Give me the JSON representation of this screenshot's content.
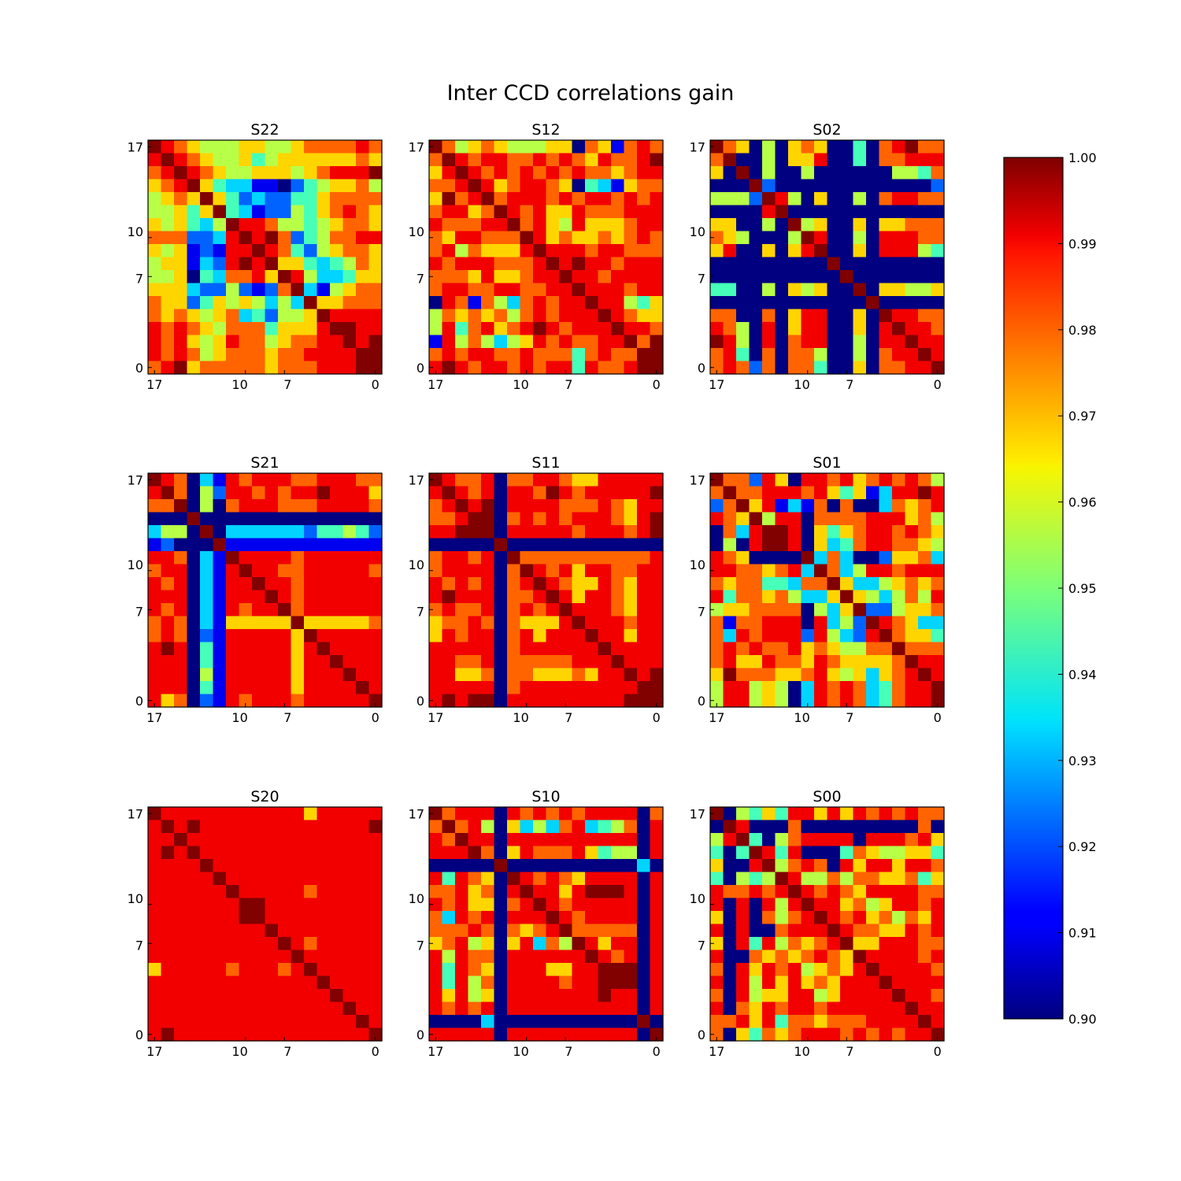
{
  "chart_data": {
    "type": "heatmap",
    "title": "Inter CCD correlations gain",
    "colormap": "jet",
    "color_range": [
      0.9,
      1.0
    ],
    "matrix_size": 18,
    "x_ticks": [
      "17",
      "10",
      "7",
      "0"
    ],
    "y_ticks": [
      "17",
      "10",
      "7",
      "0"
    ],
    "colorbar_ticks": [
      "1.00",
      "0.99",
      "0.98",
      "0.97",
      "0.96",
      "0.95",
      "0.94",
      "0.93",
      "0.92",
      "0.91",
      "0.90"
    ],
    "panels": [
      {
        "name": "S22",
        "rows": [
          "9,8,7,6,5,5,5,6,6,5,5,6,7,7,7,7,8,7",
          "8,9,8,7,6,5,5,6,4,5,6,6,6,6,6,6,7,6",
          "7,8,9,8,7,6,5,5,6,6,6,5,6,7,8,8,8,9",
          "6,7,8,9,6,4,3,3,1,1,0,2,4,5,6,6,7,5",
          "5,6,7,6,9,6,4,2,3,2,2,4,4,6,7,7,7,7",
          "5,5,6,4,6,9,4,3,1,2,2,5,4,6,7,8,7,6",
          "6,5,6,4,3,5,9,8,8,7,5,5,4,5,6,7,7,6",
          "7,7,7,2,2,3,8,9,8,9,7,2,4,5,7,7,8,8",
          "6,5,6,1,2,1,8,8,9,8,7,4,2,5,6,7,7,6",
          "5,6,6,1,3,2,8,9,8,9,6,6,4,3,4,5,7,6",
          "5,5,6,0,4,3,7,7,8,6,9,8,5,3,3,4,6,6",
          "6,6,6,3,2,2,5,2,1,2,7,9,3,1,5,6,7,7",
          "7,6,6,2,4,6,5,6,5,3,5,3,9,6,6,7,7,7",
          "7,6,7,6,5,6,7,3,4,2,5,5,6,9,8,8,8,8",
          "8,7,8,7,6,5,7,7,7,4,6,6,6,8,9,9,8,8",
          "8,7,8,6,5,6,8,7,7,5,6,7,7,8,8,9,8,9",
          "8,7,8,7,5,6,7,7,7,6,7,7,8,8,8,8,9,9",
          "7,8,9,6,7,7,7,7,7,6,7,7,7,8,8,8,9,9"
        ]
      },
      {
        "name": "S12",
        "rows": [
          "9,7,5,6,7,6,5,5,5,6,6,0,7,6,1,7,8,7",
          "7,9,8,7,8,8,7,7,8,7,8,7,6,8,7,7,8,9",
          "6,8,9,8,7,8,7,8,7,8,7,8,7,7,6,7,8,8",
          "7,7,8,9,8,6,7,8,8,7,6,0,4,3,1,6,7,7",
          "6,9,7,8,9,7,8,8,8,7,8,7,8,8,7,8,7,8",
          "7,8,8,6,7,9,8,7,8,6,6,8,7,7,7,8,8,8",
          "8,7,7,7,8,8,9,7,8,6,5,8,6,6,6,7,8,8",
          "7,6,8,8,7,7,7,9,8,6,7,6,6,7,6,7,8,7",
          "7,8,5,7,6,6,6,8,9,8,8,8,7,8,8,7,7,7",
          "8,7,8,8,8,7,7,7,8,9,8,9,8,8,7,8,8,8",
          "7,7,7,6,8,6,6,7,8,8,9,8,8,7,8,8,8,8",
          "7,8,8,7,7,8,8,7,7,8,8,9,8,8,8,7,8,8",
          "0,8,7,1,7,5,3,7,8,7,8,8,9,8,8,5,4,6",
          "5,7,6,7,6,7,5,7,8,7,8,8,8,9,8,7,6,6",
          "5,8,4,7,8,6,7,8,9,8,7,8,8,8,9,8,8,7",
          "1,8,5,7,5,3,5,6,8,7,8,7,7,8,8,9,7,9",
          "7,8,7,8,8,7,7,8,7,7,7,4,7,8,7,7,9,9",
          "8,9,8,7,8,8,7,8,7,8,8,4,8,7,7,8,9,9"
        ]
      },
      {
        "name": "S02",
        "rows": [
          "9,7,6,0,5,0,6,7,6,0,0,4,0,7,8,9,7,7",
          "7,9,0,0,5,0,6,6,8,0,0,4,0,7,7,8,8,8",
          "6,0,9,0,5,0,0,5,0,0,0,0,0,0,5,5,4,7",
          "0,0,0,9,2,0,0,0,0,0,0,0,0,0,0,0,0,2",
          "5,5,5,2,9,8,5,0,6,0,0,5,0,7,8,8,7,7",
          "0,0,0,0,8,9,0,0,0,0,0,0,0,0,0,0,0,0",
          "6,6,0,0,5,0,9,5,6,0,0,6,0,6,6,7,7,7",
          "7,6,5,0,0,0,5,9,8,0,0,5,0,8,8,8,7,7",
          "6,8,0,0,6,0,6,8,9,0,0,6,0,8,8,8,5,4",
          "0,0,0,0,0,0,0,0,0,9,0,0,0,0,0,0,0,0",
          "0,0,0,0,0,0,0,0,0,0,9,0,0,0,0,0,0,0",
          "4,4,0,0,5,0,6,5,6,0,0,9,0,6,6,5,5,6",
          "0,0,0,0,0,0,0,0,0,0,0,0,9,0,0,0,0,0",
          "7,7,0,0,7,0,6,8,8,0,0,6,0,9,8,8,7,7",
          "8,7,5,0,8,0,6,8,8,0,0,6,0,8,9,8,8,7",
          "9,8,5,0,8,0,7,8,8,0,0,5,0,8,8,9,8,8",
          "7,8,4,0,7,0,7,7,5,0,0,5,0,7,8,8,9,8",
          "7,8,7,2,7,0,7,7,4,0,0,6,0,7,7,8,8,9"
        ]
      },
      {
        "name": "S21",
        "rows": [
          "9,8,7,0,3,1,8,7,8,8,8,7,7,8,8,8,7,7",
          "8,9,7,0,5,2,8,8,7,8,7,8,8,9,8,8,8,6",
          "7,7,9,0,5,0,7,8,8,8,7,7,7,8,8,8,8,7",
          "0,0,0,9,0,0,0,0,0,0,0,0,0,0,0,0,0,0",
          "3,5,5,0,9,0,3,3,3,3,3,3,2,4,4,5,4,2",
          "1,2,0,0,0,9,1,1,1,1,1,1,1,1,1,1,1,1",
          "8,8,7,0,3,1,9,8,8,8,8,7,8,8,8,8,8,8",
          "7,8,8,0,3,1,8,9,8,8,7,7,8,8,8,8,8,7",
          "8,7,8,0,3,1,8,8,9,8,8,7,8,8,8,8,8,8",
          "8,8,8,0,3,1,8,8,8,9,8,7,8,8,8,8,8,8",
          "8,7,8,0,3,1,8,7,8,8,9,7,8,8,8,8,8,8",
          "7,8,7,0,3,1,6,6,6,6,6,9,6,6,6,6,6,7",
          "7,8,7,0,2,1,8,8,8,8,8,6,9,8,8,8,8,8",
          "8,9,8,0,4,1,8,8,8,8,8,6,8,9,8,8,8,8",
          "8,8,8,0,4,1,8,8,8,8,8,6,8,8,9,8,8,8",
          "8,8,8,0,5,1,8,8,8,8,8,6,8,8,8,9,8,8",
          "8,8,8,0,4,1,8,8,8,8,8,6,8,8,8,8,9,8",
          "8,6,7,0,2,1,8,7,8,8,8,7,8,8,8,8,8,9"
        ]
      },
      {
        "name": "S11",
        "rows": [
          "9,8,7,7,8,0,7,7,8,8,7,6,6,8,8,8,8,8",
          "8,9,8,7,8,0,8,8,7,9,8,7,8,8,8,8,8,9",
          "7,8,9,8,9,0,8,8,8,8,7,7,7,8,7,6,8,8",
          "7,7,8,9,9,0,7,8,7,8,7,8,8,8,7,6,8,9",
          "8,8,9,9,9,0,8,8,8,8,8,7,8,8,8,7,8,9",
          "0,0,0,0,0,9,0,0,0,0,0,0,0,0,0,0,0,0",
          "7,8,8,7,8,0,9,7,7,7,7,7,7,7,7,7,7,8",
          "7,8,8,8,8,0,7,9,8,7,8,6,8,8,7,7,8,8",
          "8,7,8,7,8,0,7,8,9,8,7,6,6,8,7,6,8,8",
          "8,9,8,8,8,0,7,7,8,9,8,6,8,8,7,6,8,8",
          "7,8,7,7,8,0,7,8,7,8,9,8,8,8,7,6,8,8",
          "6,7,7,8,7,0,7,6,6,6,8,9,8,8,8,7,8,8",
          "6,8,7,8,8,0,7,8,6,8,8,8,9,8,8,6,8,8",
          "8,8,8,8,8,0,7,8,8,8,8,8,8,9,8,8,8,8",
          "8,8,7,7,8,0,7,7,7,7,7,8,8,8,9,8,8,8",
          "8,8,6,6,7,0,7,7,6,6,6,7,6,8,8,9,8,9",
          "8,8,8,8,8,0,7,8,8,8,8,8,8,8,8,8,9,9",
          "8,9,8,9,9,0,8,8,8,8,8,8,8,8,8,9,9,9"
        ]
      },
      {
        "name": "S01",
        "rows": [
          "9,7,7,2,8,6,0,8,8,7,8,6,7,8,7,8,7,5",
          "7,9,7,7,8,8,8,7,8,6,4,6,1,3,8,8,9,8",
          "2,7,9,6,8,1,3,1,7,0,7,0,0,3,7,6,7,8",
          "8,7,6,9,5,8,8,0,7,7,7,7,8,8,8,6,7,5",
          "0,7,3,8,9,9,8,0,6,4,6,7,8,8,7,8,7,6",
          "0,5,0,8,9,9,8,0,6,3,4,7,8,8,7,7,6,5",
          "8,7,6,0,0,0,0,9,3,7,3,0,0,2,6,6,7,3",
          "8,8,7,7,6,7,8,3,9,7,3,5,8,8,7,8,8,8",
          "7,6,7,7,4,4,3,7,7,9,6,3,3,5,6,7,6,7",
          "8,4,7,7,6,7,5,3,3,6,9,6,5,3,5,7,5,8",
          "5,6,6,7,7,7,7,0,5,3,6,9,2,2,5,6,6,7",
          "7,1,7,7,8,8,8,0,8,3,5,2,9,8,7,6,3,3",
          "7,3,8,7,8,8,8,2,8,5,3,2,8,9,7,6,6,4",
          "7,8,7,8,7,7,8,6,7,6,5,5,7,7,9,7,7,7",
          "7,8,6,6,8,7,7,6,8,7,6,6,6,6,7,9,8,8",
          "6,9,7,7,7,6,6,7,8,6,5,6,3,6,7,8,9,8",
          "5,8,8,5,6,5,0,3,8,7,8,7,3,4,7,8,8,9",
          "5,8,8,5,6,5,0,3,8,7,8,7,3,4,7,8,8,9"
        ]
      },
      {
        "name": "S20",
        "rows": [
          "9,8,8,8,8,8,8,8,8,8,8,8,6,8,8,8,8,8",
          "8,9,8,9,8,8,8,8,8,8,8,8,8,8,8,8,8,9",
          "8,8,9,8,8,8,8,8,8,8,8,8,8,8,8,8,8,8",
          "8,9,8,9,8,8,8,8,8,8,8,8,8,8,8,8,8,8",
          "8,8,8,8,9,8,8,8,8,8,8,8,8,8,8,8,8,8",
          "8,8,8,8,8,9,8,8,8,8,8,8,8,8,8,8,8,8",
          "8,8,8,8,8,8,9,8,8,8,8,8,7,8,8,8,8,8",
          "8,8,8,8,8,8,8,9,9,8,8,8,8,8,8,8,8,8",
          "8,8,8,8,8,8,8,9,9,8,8,8,8,8,8,8,8,8",
          "8,8,8,8,8,8,8,8,8,9,8,8,8,8,8,8,8,8",
          "8,8,8,8,8,8,8,8,8,8,9,8,7,8,8,8,8,8",
          "8,8,8,8,8,8,8,8,8,8,8,9,8,8,8,8,8,8",
          "6,8,8,8,8,8,7,8,8,8,7,8,9,8,8,8,8,8",
          "8,8,8,8,8,8,8,8,8,8,8,8,8,9,8,8,8,8",
          "8,8,8,8,8,8,8,8,8,8,8,8,8,8,9,8,8,8",
          "8,8,8,8,8,8,8,8,8,8,8,8,8,8,8,9,8,8",
          "8,8,8,8,8,8,8,8,8,8,8,8,8,8,8,8,9,8",
          "8,9,8,8,8,8,8,8,8,8,8,8,8,8,8,8,8,9"
        ]
      },
      {
        "name": "S10",
        "rows": [
          "9,7,8,8,8,0,8,7,8,7,8,7,8,8,8,8,0,7",
          "7,9,7,8,5,0,6,3,5,3,7,8,3,4,5,7,0,8",
          "8,7,9,8,8,0,8,8,8,8,8,8,8,8,8,8,0,8",
          "8,8,8,9,7,0,6,8,7,7,7,8,6,4,5,5,0,8",
          "0,0,0,0,0,9,0,0,0,0,0,0,0,0,0,0,3,0",
          "8,4,8,7,6,0,9,8,7,8,7,6,8,8,8,8,0,8",
          "7,7,8,6,7,0,8,9,8,8,6,8,9,9,9,8,0,8",
          "8,7,8,6,6,0,7,8,9,8,7,8,8,8,8,8,0,8",
          "7,3,8,7,8,0,8,8,8,9,8,7,8,8,8,8,0,8",
          "7,7,7,8,7,0,7,6,7,8,9,7,7,7,7,7,0,8",
          "6,7,8,5,6,0,6,8,3,7,5,9,8,6,8,8,0,8",
          "8,5,8,7,7,0,8,8,8,8,8,8,9,8,7,8,0,8",
          "8,4,8,7,6,0,8,8,8,6,6,8,8,9,9,9,0,8",
          "8,4,8,5,7,0,8,8,8,8,7,8,8,9,9,9,0,8",
          "8,6,8,5,6,0,8,8,8,8,8,8,8,9,8,8,0,8",
          "8,7,8,7,8,0,8,8,8,8,8,8,8,8,8,8,0,8",
          "0,0,0,0,3,0,0,0,0,0,0,0,0,0,0,0,9,0",
          "8,8,8,8,8,0,8,8,8,8,8,8,8,8,8,8,0,9"
        ]
      },
      {
        "name": "S00",
        "rows": [
          "9,0,5,4,6,4,8,8,6,8,6,8,7,8,7,8,7,7",
          "0,9,8,0,0,0,7,0,0,0,0,0,0,0,0,0,7,0",
          "5,8,9,4,0,5,7,8,8,8,8,0,8,8,8,7,8,6",
          "4,0,4,9,8,4,8,0,0,0,4,7,6,5,5,6,6,4",
          "6,0,0,8,9,5,7,8,7,0,8,6,8,8,6,8,8,7",
          "4,0,5,4,5,9,8,5,5,7,5,7,7,6,6,7,4,6",
          "8,7,7,8,7,8,9,8,7,8,7,6,8,8,8,8,7,7",
          "8,0,8,0,8,5,8,9,8,8,6,7,5,6,8,8,7,8",
          "6,0,8,0,7,5,7,8,9,8,7,8,6,7,5,7,6,8",
          "8,0,8,0,0,7,8,8,8,9,8,7,7,6,6,8,7,8",
          "6,0,8,4,8,5,7,6,7,8,9,6,6,8,8,8,7,7",
          "8,0,0,7,6,7,6,7,8,7,6,9,8,8,8,8,7,8",
          "7,0,8,6,8,7,8,5,6,7,6,8,9,8,8,8,8,7",
          "8,0,8,5,8,6,8,6,7,6,8,8,8,9,8,8,8,8",
          "7,0,8,5,6,6,8,8,5,6,8,8,8,8,9,8,8,7",
          "8,0,7,6,8,7,8,8,7,8,8,8,8,8,8,9,8,8",
          "7,7,8,6,8,4,7,7,6,7,7,7,8,8,8,8,9,8",
          "7,0,6,4,7,6,7,8,8,8,7,8,7,8,7,8,8,9"
        ]
      }
    ]
  }
}
